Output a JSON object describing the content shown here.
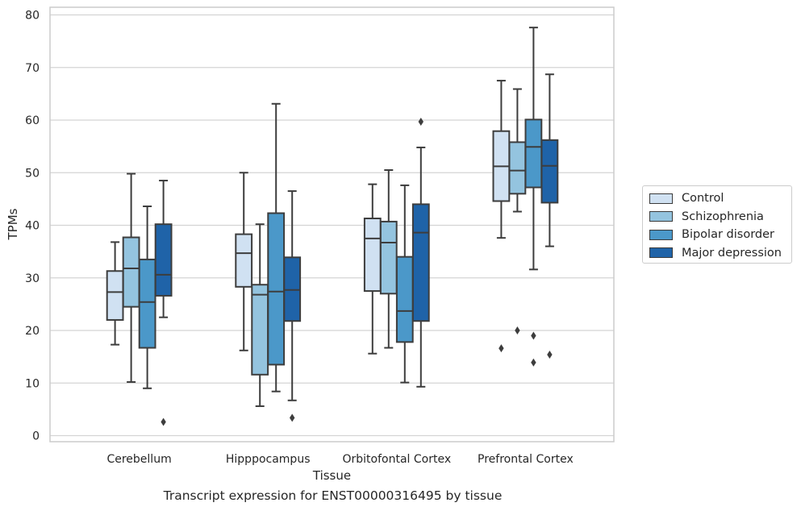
{
  "chart_data": {
    "type": "box",
    "xlabel": "Tissue",
    "ylabel": "TPMs",
    "caption": "Transcript expression for ENST00000316495 by tissue",
    "ylim": [
      -1,
      81.5
    ],
    "yticks": [
      0,
      10,
      20,
      30,
      40,
      50,
      60,
      70,
      80
    ],
    "grid": true,
    "legend_position": "right",
    "categories": [
      "Cerebellum",
      "Hipppocampus",
      "Orbitofontal Cortex",
      "Prefrontal Cortex"
    ],
    "series": [
      {
        "name": "Control",
        "color": "#d0e1f2",
        "boxes": [
          {
            "whisker_low": 17.3,
            "q1": 22.0,
            "median": 27.3,
            "q3": 31.3,
            "whisker_high": 36.8,
            "outliers": []
          },
          {
            "whisker_low": 16.2,
            "q1": 28.3,
            "median": 34.7,
            "q3": 38.3,
            "whisker_high": 50.0,
            "outliers": []
          },
          {
            "whisker_low": 15.6,
            "q1": 27.5,
            "median": 37.5,
            "q3": 41.3,
            "whisker_high": 47.8,
            "outliers": []
          },
          {
            "whisker_low": 37.6,
            "q1": 44.6,
            "median": 51.2,
            "q3": 57.9,
            "whisker_high": 67.5,
            "outliers": [
              16.6
            ]
          }
        ]
      },
      {
        "name": "Schizophrenia",
        "color": "#94c4df",
        "boxes": [
          {
            "whisker_low": 10.2,
            "q1": 24.5,
            "median": 31.8,
            "q3": 37.7,
            "whisker_high": 49.8,
            "outliers": []
          },
          {
            "whisker_low": 5.6,
            "q1": 11.6,
            "median": 26.8,
            "q3": 28.7,
            "whisker_high": 40.2,
            "outliers": []
          },
          {
            "whisker_low": 16.7,
            "q1": 27.0,
            "median": 36.7,
            "q3": 40.7,
            "whisker_high": 50.5,
            "outliers": []
          },
          {
            "whisker_low": 42.6,
            "q1": 46.0,
            "median": 50.4,
            "q3": 55.8,
            "whisker_high": 65.9,
            "outliers": [
              20.0
            ]
          }
        ]
      },
      {
        "name": "Bipolar disorder",
        "color": "#4b98c9",
        "boxes": [
          {
            "whisker_low": 9.0,
            "q1": 16.7,
            "median": 25.4,
            "q3": 33.5,
            "whisker_high": 43.6,
            "outliers": []
          },
          {
            "whisker_low": 8.4,
            "q1": 13.5,
            "median": 27.4,
            "q3": 42.3,
            "whisker_high": 63.1,
            "outliers": []
          },
          {
            "whisker_low": 10.1,
            "q1": 17.8,
            "median": 23.7,
            "q3": 34.0,
            "whisker_high": 47.6,
            "outliers": []
          },
          {
            "whisker_low": 31.6,
            "q1": 47.2,
            "median": 54.9,
            "q3": 60.1,
            "whisker_high": 77.6,
            "outliers": [
              13.9,
              19.0
            ]
          }
        ]
      },
      {
        "name": "Major depression",
        "color": "#1f63a8",
        "boxes": [
          {
            "whisker_low": 22.5,
            "q1": 26.6,
            "median": 30.6,
            "q3": 40.2,
            "whisker_high": 48.5,
            "outliers": [
              2.6
            ]
          },
          {
            "whisker_low": 6.7,
            "q1": 21.8,
            "median": 27.7,
            "q3": 33.9,
            "whisker_high": 46.5,
            "outliers": [
              3.4
            ]
          },
          {
            "whisker_low": 9.3,
            "q1": 21.8,
            "median": 38.6,
            "q3": 44.0,
            "whisker_high": 54.8,
            "outliers": [
              59.7
            ]
          },
          {
            "whisker_low": 36.0,
            "q1": 44.3,
            "median": 51.3,
            "q3": 56.2,
            "whisker_high": 68.7,
            "outliers": [
              15.4
            ]
          }
        ]
      }
    ]
  }
}
